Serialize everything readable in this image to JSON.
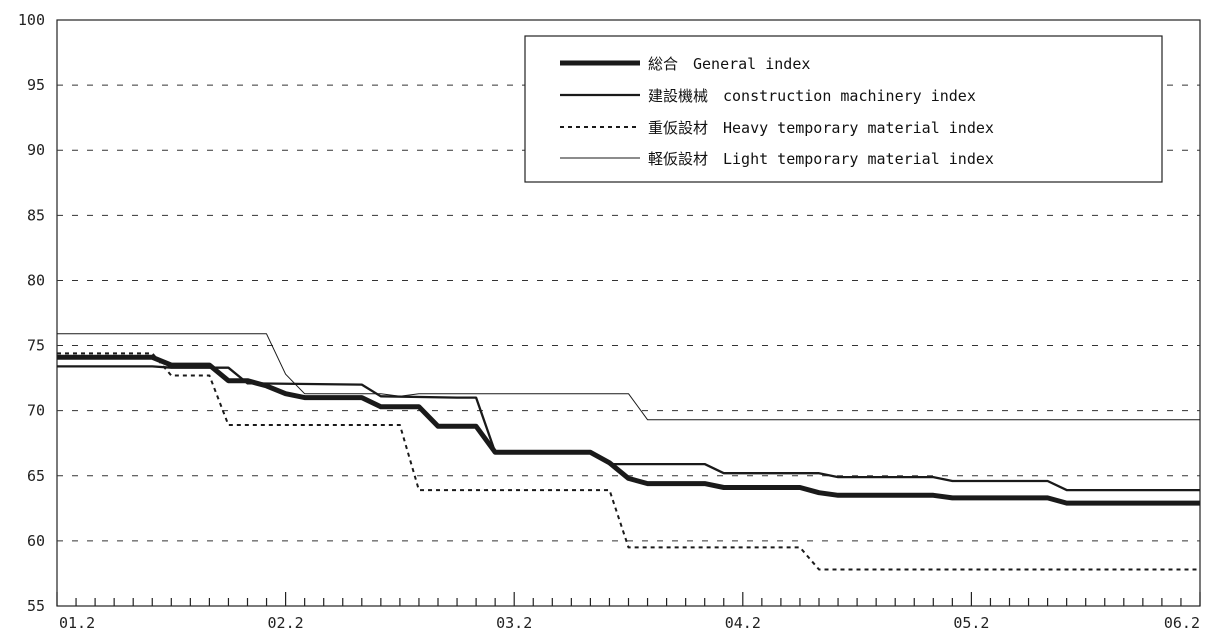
{
  "chart_data": {
    "type": "line",
    "title": "",
    "xlabel": "",
    "ylabel": "",
    "ylim": [
      55,
      100
    ],
    "yticks": [
      "55",
      "60",
      "65",
      "70",
      "75",
      "80",
      "85",
      "90",
      "95",
      "100"
    ],
    "xlim": [
      0,
      60
    ],
    "xticks": [
      {
        "pos": 0,
        "label": "01.2"
      },
      {
        "pos": 12,
        "label": "02.2"
      },
      {
        "pos": 24,
        "label": "03.2"
      },
      {
        "pos": 36,
        "label": "04.2"
      },
      {
        "pos": 48,
        "label": "05.2"
      },
      {
        "pos": 60,
        "label": "06.2"
      }
    ],
    "grid": "horizontal dashed",
    "legend": "top-right",
    "series": [
      {
        "name": "総合　General index",
        "style": "thick",
        "values": [
          [
            0,
            74.1
          ],
          [
            5,
            74.1
          ],
          [
            6,
            73.5
          ],
          [
            8,
            73.5
          ],
          [
            9,
            72.3
          ],
          [
            10,
            72.3
          ],
          [
            11,
            71.9
          ],
          [
            12,
            71.3
          ],
          [
            13,
            71.0
          ],
          [
            16,
            71.0
          ],
          [
            17,
            70.3
          ],
          [
            19,
            70.3
          ],
          [
            20,
            68.8
          ],
          [
            22,
            68.8
          ],
          [
            23,
            66.8
          ],
          [
            28,
            66.8
          ],
          [
            29,
            66.0
          ],
          [
            30,
            64.8
          ],
          [
            31,
            64.4
          ],
          [
            34,
            64.4
          ],
          [
            35,
            64.1
          ],
          [
            39,
            64.1
          ],
          [
            40,
            63.7
          ],
          [
            41,
            63.5
          ],
          [
            46,
            63.5
          ],
          [
            47,
            63.3
          ],
          [
            52,
            63.3
          ],
          [
            53,
            62.9
          ],
          [
            60,
            62.9
          ]
        ]
      },
      {
        "name": "建設機械　construction machinery index",
        "style": "medium",
        "values": [
          [
            0,
            73.4
          ],
          [
            5,
            73.4
          ],
          [
            6,
            73.3
          ],
          [
            9,
            73.3
          ],
          [
            10,
            72.1
          ],
          [
            16,
            72.0
          ],
          [
            17,
            71.1
          ],
          [
            21,
            71.0
          ],
          [
            22,
            71.0
          ],
          [
            23,
            66.8
          ],
          [
            28,
            66.8
          ],
          [
            29,
            65.9
          ],
          [
            34,
            65.9
          ],
          [
            35,
            65.2
          ],
          [
            40,
            65.2
          ],
          [
            41,
            64.9
          ],
          [
            46,
            64.9
          ],
          [
            47,
            64.6
          ],
          [
            52,
            64.6
          ],
          [
            53,
            63.9
          ],
          [
            60,
            63.9
          ]
        ]
      },
      {
        "name": "重仮設材　Heavy temporary material index",
        "style": "dotted",
        "values": [
          [
            0,
            74.4
          ],
          [
            5,
            74.4
          ],
          [
            6,
            72.7
          ],
          [
            8,
            72.7
          ],
          [
            9,
            68.9
          ],
          [
            17,
            68.9
          ],
          [
            18,
            68.9
          ],
          [
            19,
            63.9
          ],
          [
            28,
            63.9
          ],
          [
            29,
            63.9
          ],
          [
            30,
            59.5
          ],
          [
            38,
            59.5
          ],
          [
            39,
            59.5
          ],
          [
            40,
            57.8
          ],
          [
            60,
            57.8
          ]
        ]
      },
      {
        "name": "軽仮設材　Light temporary material index",
        "style": "thin",
        "values": [
          [
            0,
            75.9
          ],
          [
            11,
            75.9
          ],
          [
            12,
            72.8
          ],
          [
            13,
            71.3
          ],
          [
            17,
            71.3
          ],
          [
            18,
            71.1
          ],
          [
            19,
            71.3
          ],
          [
            30,
            71.3
          ],
          [
            31,
            69.3
          ],
          [
            60,
            69.3
          ]
        ]
      }
    ]
  }
}
